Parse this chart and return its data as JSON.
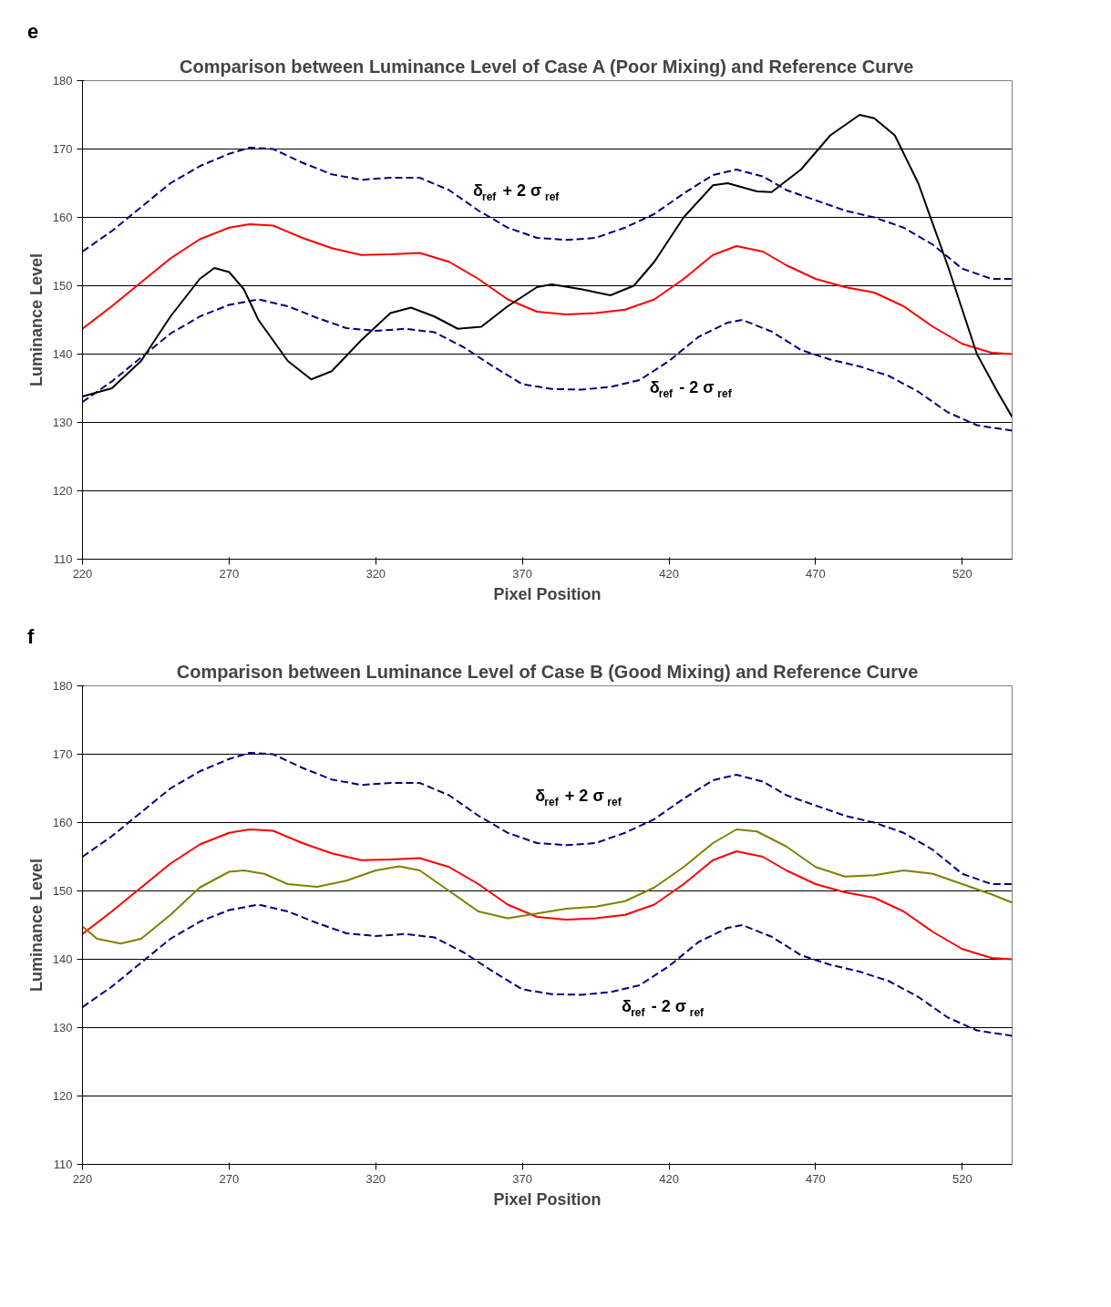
{
  "chart_data": [
    {
      "type": "line",
      "title": "Comparison between Luminance Level of Case A (Poor Mixing) and Reference Curve",
      "xlabel": "Pixel Position",
      "ylabel": "Luminance Level",
      "xlim": [
        220,
        537
      ],
      "ylim": [
        110,
        180
      ],
      "xticks": [
        220,
        270,
        320,
        370,
        420,
        470,
        520
      ],
      "yticks": [
        110,
        120,
        130,
        140,
        150,
        160,
        170,
        180
      ],
      "grid": "y",
      "annotations": [
        "e",
        "δ$_{ref}$ + 2 σ$_{ref}$",
        "δ$_{ref}$ - 2 σ$_{ref}$"
      ],
      "series": [
        {
          "color": "#000080",
          "line_style": "dashed",
          "x": [
            220,
            230,
            240,
            250,
            260,
            270,
            277,
            285,
            295,
            305,
            315,
            325,
            335,
            345,
            355,
            365,
            375,
            385,
            395,
            405,
            415,
            425,
            435,
            443,
            452,
            460,
            470,
            480,
            490,
            500,
            510,
            520,
            530,
            537
          ],
          "values": [
            155,
            158,
            161.5,
            165,
            167.5,
            169.3,
            170.2,
            170,
            168,
            166.3,
            165.5,
            165.8,
            165.8,
            164,
            161,
            158.5,
            157,
            156.7,
            157,
            158.5,
            160.5,
            163.5,
            166.2,
            167,
            166,
            164,
            162.5,
            161,
            160,
            158.5,
            156,
            152.5,
            151,
            151
          ]
        },
        {
          "color": "#ff0000",
          "line_style": "solid",
          "x": [
            220,
            230,
            240,
            250,
            260,
            270,
            277,
            285,
            295,
            305,
            315,
            325,
            335,
            345,
            355,
            365,
            375,
            385,
            395,
            405,
            415,
            425,
            435,
            443,
            452,
            460,
            470,
            480,
            490,
            500,
            510,
            520,
            530,
            537
          ],
          "values": [
            143.7,
            147,
            150.5,
            154,
            156.8,
            158.5,
            159,
            158.8,
            157,
            155.5,
            154.5,
            154.6,
            154.8,
            153.5,
            151,
            148,
            146.2,
            145.8,
            146,
            146.5,
            148,
            151,
            154.5,
            155.8,
            155,
            153,
            151,
            149.8,
            149,
            147,
            144,
            141.5,
            140.2,
            140
          ]
        },
        {
          "color": "#000080",
          "line_style": "dashed",
          "x": [
            220,
            230,
            240,
            250,
            260,
            270,
            280,
            290,
            300,
            310,
            320,
            330,
            340,
            350,
            360,
            370,
            380,
            390,
            400,
            410,
            420,
            430,
            440,
            445,
            455,
            465,
            475,
            485,
            495,
            505,
            515,
            525,
            537
          ],
          "values": [
            133,
            136,
            139.5,
            143,
            145.5,
            147.2,
            148,
            147,
            145.3,
            143.8,
            143.4,
            143.7,
            143.2,
            141,
            138.2,
            135.6,
            134.9,
            134.8,
            135.2,
            136.2,
            139,
            142.5,
            144.6,
            145,
            143.3,
            140.6,
            139.2,
            138.2,
            136.8,
            134.5,
            131.5,
            129.6,
            128.8
          ]
        },
        {
          "color": "#000000",
          "line_style": "solid",
          "x": [
            220,
            230,
            240,
            250,
            260,
            265,
            270,
            275,
            280,
            290,
            298,
            305,
            315,
            325,
            332,
            340,
            348,
            356,
            365,
            375,
            380,
            390,
            400,
            408,
            415,
            425,
            435,
            440,
            450,
            455,
            465,
            475,
            485,
            490,
            497,
            505,
            515,
            525,
            532,
            537
          ],
          "values": [
            133.8,
            135,
            139,
            145.5,
            151,
            152.6,
            152,
            149.5,
            145,
            139,
            136.3,
            137.5,
            142,
            146,
            146.8,
            145.5,
            143.7,
            144,
            147,
            149.8,
            150.2,
            149.5,
            148.6,
            150,
            153.5,
            160,
            164.7,
            165,
            163.8,
            163.7,
            167,
            172,
            175,
            174.5,
            172,
            165,
            153,
            140,
            134.5,
            130.8
          ]
        }
      ]
    },
    {
      "type": "line",
      "title": "Comparison between Luminance Level of Case B (Good Mixing) and Reference Curve",
      "xlabel": "Pixel Position",
      "ylabel": "Luminance Level",
      "xlim": [
        220,
        537
      ],
      "ylim": [
        110,
        180
      ],
      "xticks": [
        220,
        270,
        320,
        370,
        420,
        470,
        520
      ],
      "yticks": [
        110,
        120,
        130,
        140,
        150,
        160,
        170,
        180
      ],
      "grid": "y",
      "annotations": [
        "f",
        "δ$_{ref}$ + 2 σ$_{ref}$",
        "δ$_{ref}$ - 2 σ$_{ref}$"
      ],
      "series": [
        {
          "color": "#000080",
          "line_style": "dashed",
          "x": [
            220,
            230,
            240,
            250,
            260,
            270,
            277,
            285,
            295,
            305,
            315,
            325,
            335,
            345,
            355,
            365,
            375,
            385,
            395,
            405,
            415,
            425,
            435,
            443,
            452,
            460,
            470,
            480,
            490,
            500,
            510,
            520,
            530,
            537
          ],
          "values": [
            155,
            158,
            161.5,
            165,
            167.5,
            169.3,
            170.2,
            170,
            168,
            166.3,
            165.5,
            165.8,
            165.8,
            164,
            161,
            158.5,
            157,
            156.7,
            157,
            158.5,
            160.5,
            163.5,
            166.2,
            167,
            166,
            164,
            162.5,
            161,
            160,
            158.5,
            156,
            152.5,
            151,
            151
          ]
        },
        {
          "color": "#ff0000",
          "line_style": "solid",
          "x": [
            220,
            230,
            240,
            250,
            260,
            270,
            277,
            285,
            295,
            305,
            315,
            325,
            335,
            345,
            355,
            365,
            375,
            385,
            395,
            405,
            415,
            425,
            435,
            443,
            452,
            460,
            470,
            480,
            490,
            500,
            510,
            520,
            530,
            537
          ],
          "values": [
            143.7,
            147,
            150.5,
            154,
            156.8,
            158.5,
            159,
            158.8,
            157,
            155.5,
            154.5,
            154.6,
            154.8,
            153.5,
            151,
            148,
            146.2,
            145.8,
            146,
            146.5,
            148,
            151,
            154.5,
            155.8,
            155,
            153,
            151,
            149.8,
            149,
            147,
            144,
            141.5,
            140.2,
            140
          ]
        },
        {
          "color": "#000080",
          "line_style": "dashed",
          "x": [
            220,
            230,
            240,
            250,
            260,
            270,
            280,
            290,
            300,
            310,
            320,
            330,
            340,
            350,
            360,
            370,
            380,
            390,
            400,
            410,
            420,
            430,
            440,
            445,
            455,
            465,
            475,
            485,
            495,
            505,
            515,
            525,
            537
          ],
          "values": [
            133,
            136,
            139.5,
            143,
            145.5,
            147.2,
            148,
            147,
            145.3,
            143.8,
            143.4,
            143.7,
            143.2,
            141,
            138.2,
            135.6,
            134.9,
            134.8,
            135.2,
            136.2,
            139,
            142.5,
            144.6,
            145,
            143.3,
            140.6,
            139.2,
            138.2,
            136.8,
            134.5,
            131.5,
            129.6,
            128.8
          ]
        },
        {
          "color": "#808000",
          "line_style": "solid",
          "x": [
            220,
            225,
            233,
            240,
            250,
            260,
            270,
            275,
            282,
            290,
            300,
            310,
            320,
            328,
            335,
            345,
            355,
            365,
            375,
            385,
            395,
            405,
            415,
            425,
            435,
            443,
            450,
            460,
            470,
            480,
            490,
            500,
            510,
            520,
            530,
            537
          ],
          "values": [
            144.8,
            143,
            142.3,
            143,
            146.5,
            150.5,
            152.8,
            153,
            152.5,
            151,
            150.6,
            151.5,
            153,
            153.6,
            153,
            150,
            147,
            146,
            146.7,
            147.4,
            147.7,
            148.5,
            150.5,
            153.5,
            157,
            159,
            158.7,
            156.5,
            153.5,
            152.1,
            152.3,
            153,
            152.5,
            151,
            149.5,
            148.3
          ]
        }
      ]
    }
  ]
}
